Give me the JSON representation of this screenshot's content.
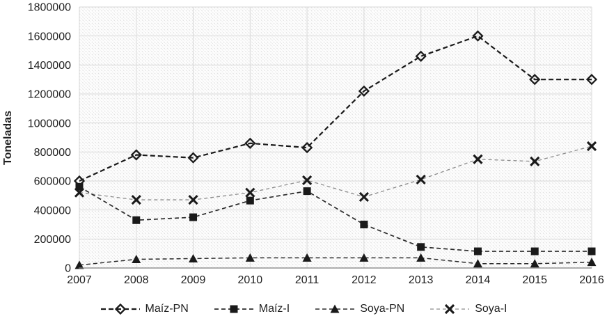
{
  "chart_data": {
    "type": "line",
    "title": "",
    "xlabel": "",
    "ylabel": "Toneladas",
    "categories": [
      "2007",
      "2008",
      "2009",
      "2010",
      "2011",
      "2012",
      "2013",
      "2014",
      "2015",
      "2016"
    ],
    "ylim": [
      0,
      1800000
    ],
    "ytick_step": 200000,
    "yticks": [
      0,
      200000,
      400000,
      600000,
      800000,
      1000000,
      1200000,
      1400000,
      1600000,
      1800000
    ],
    "ytick_labels": [
      "0",
      "200000",
      "400000",
      "600000",
      "800000",
      "1000000",
      "1200000",
      "1400000",
      "1600000",
      "1800000"
    ],
    "grid": true,
    "legend_position": "bottom",
    "plot_background": "light-diagonal-hatch",
    "series": [
      {
        "name": "Maíz-PN",
        "marker": "diamond-open",
        "line_style": "dashed",
        "line_color": "#1a1a1a",
        "marker_color": "#1a1a1a",
        "values": [
          600000,
          780000,
          760000,
          860000,
          830000,
          1220000,
          1460000,
          1600000,
          1300000,
          1300000
        ]
      },
      {
        "name": "Maíz-I",
        "marker": "square-filled",
        "line_style": "dashed",
        "line_color": "#2b2b2b",
        "marker_color": "#1a1a1a",
        "values": [
          560000,
          330000,
          350000,
          465000,
          530000,
          300000,
          145000,
          115000,
          115000,
          115000
        ]
      },
      {
        "name": "Soya-PN",
        "marker": "triangle-filled",
        "line_style": "dashed",
        "line_color": "#2b2b2b",
        "marker_color": "#1a1a1a",
        "values": [
          20000,
          60000,
          65000,
          70000,
          70000,
          70000,
          70000,
          30000,
          30000,
          40000
        ]
      },
      {
        "name": "Soya-I",
        "marker": "x-cross",
        "line_style": "dashed",
        "line_color": "#8c8c8c",
        "marker_color": "#1a1a1a",
        "values": [
          520000,
          470000,
          470000,
          520000,
          605000,
          490000,
          610000,
          750000,
          735000,
          840000
        ]
      }
    ]
  },
  "colors": {
    "gridline": "#d9d9d9",
    "axis_line": "#7f7f7f",
    "text": "#1f1f1f",
    "hatch": "#dddddd",
    "plot_fill": "#fdfdfd"
  }
}
